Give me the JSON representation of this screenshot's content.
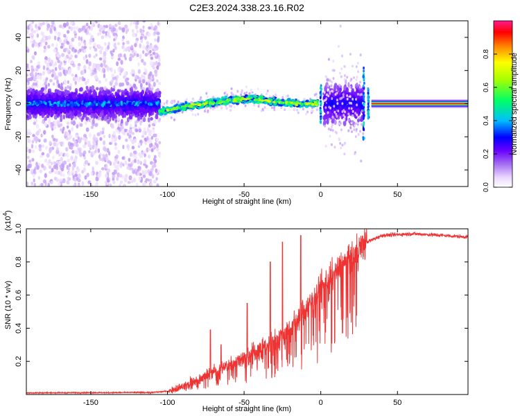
{
  "figure": {
    "title": "C2E3.2024.338.23.16.R02"
  },
  "chart_data": [
    {
      "type": "heatmap",
      "xlabel": "Height of straight line (km)",
      "ylabel": "Frequency (Hz)",
      "xlim": [
        -192,
        96
      ],
      "ylim": [
        -50,
        50
      ],
      "xticks": [
        -150,
        -100,
        -50,
        0,
        50
      ],
      "yticks": [
        -40,
        -20,
        0,
        20,
        40
      ],
      "grid": false,
      "colorbar": {
        "label": "Normalized spectral amplitude",
        "range": [
          0,
          1
        ],
        "ticks": [
          0.0,
          0.2,
          0.4,
          0.6,
          0.8
        ],
        "colors": [
          "#f2e6ff",
          "#c89bff",
          "#8a2be2",
          "#0000ff",
          "#00bfff",
          "#00ff7f",
          "#ffff00",
          "#ff7f00",
          "#ff0000",
          "#ff1493"
        ]
      },
      "features": {
        "dense_noise_region_x": [
          -192,
          -105
        ],
        "gap_x": [
          -105,
          96
        ],
        "ridge_points": [
          {
            "x": -105,
            "y": -5
          },
          {
            "x": -90,
            "y": -2
          },
          {
            "x": -75,
            "y": 0
          },
          {
            "x": -60,
            "y": 2
          },
          {
            "x": -45,
            "y": 3
          },
          {
            "x": -30,
            "y": 1
          },
          {
            "x": -15,
            "y": 0
          },
          {
            "x": -2,
            "y": 0
          }
        ],
        "spikes_x": [
          0,
          28,
          31
        ],
        "steady_line_x": [
          33,
          96
        ]
      }
    },
    {
      "type": "line",
      "xlabel": "Height of straight line (km)",
      "ylabel": "SNR (10 * v/v)",
      "yscale_label": "(x10",
      "yscale_exponent": "4",
      "yscale_close": ")",
      "xlim": [
        -192,
        96
      ],
      "ylim": [
        0,
        1.0
      ],
      "xticks": [
        -150,
        -100,
        -50,
        0,
        50
      ],
      "yticks": [
        0.2,
        0.4,
        0.6,
        0.8,
        1.0
      ],
      "color": "#ee3333",
      "trend": [
        {
          "x": -192,
          "y": 0.01
        },
        {
          "x": -110,
          "y": 0.012
        },
        {
          "x": -100,
          "y": 0.02
        },
        {
          "x": -90,
          "y": 0.05
        },
        {
          "x": -80,
          "y": 0.09
        },
        {
          "x": -70,
          "y": 0.14
        },
        {
          "x": -60,
          "y": 0.18
        },
        {
          "x": -50,
          "y": 0.22
        },
        {
          "x": -40,
          "y": 0.27
        },
        {
          "x": -30,
          "y": 0.33
        },
        {
          "x": -20,
          "y": 0.4
        },
        {
          "x": -10,
          "y": 0.52
        },
        {
          "x": 0,
          "y": 0.64
        },
        {
          "x": 10,
          "y": 0.74
        },
        {
          "x": 20,
          "y": 0.83
        },
        {
          "x": 30,
          "y": 0.92
        },
        {
          "x": 40,
          "y": 0.96
        },
        {
          "x": 60,
          "y": 0.97
        },
        {
          "x": 80,
          "y": 0.96
        },
        {
          "x": 96,
          "y": 0.95
        }
      ],
      "peaks": [
        {
          "x": -72,
          "y": 0.39
        },
        {
          "x": -65,
          "y": 0.3
        },
        {
          "x": -48,
          "y": 0.55
        },
        {
          "x": -33,
          "y": 0.8
        },
        {
          "x": -25,
          "y": 0.92
        },
        {
          "x": -13,
          "y": 0.96
        }
      ]
    }
  ]
}
